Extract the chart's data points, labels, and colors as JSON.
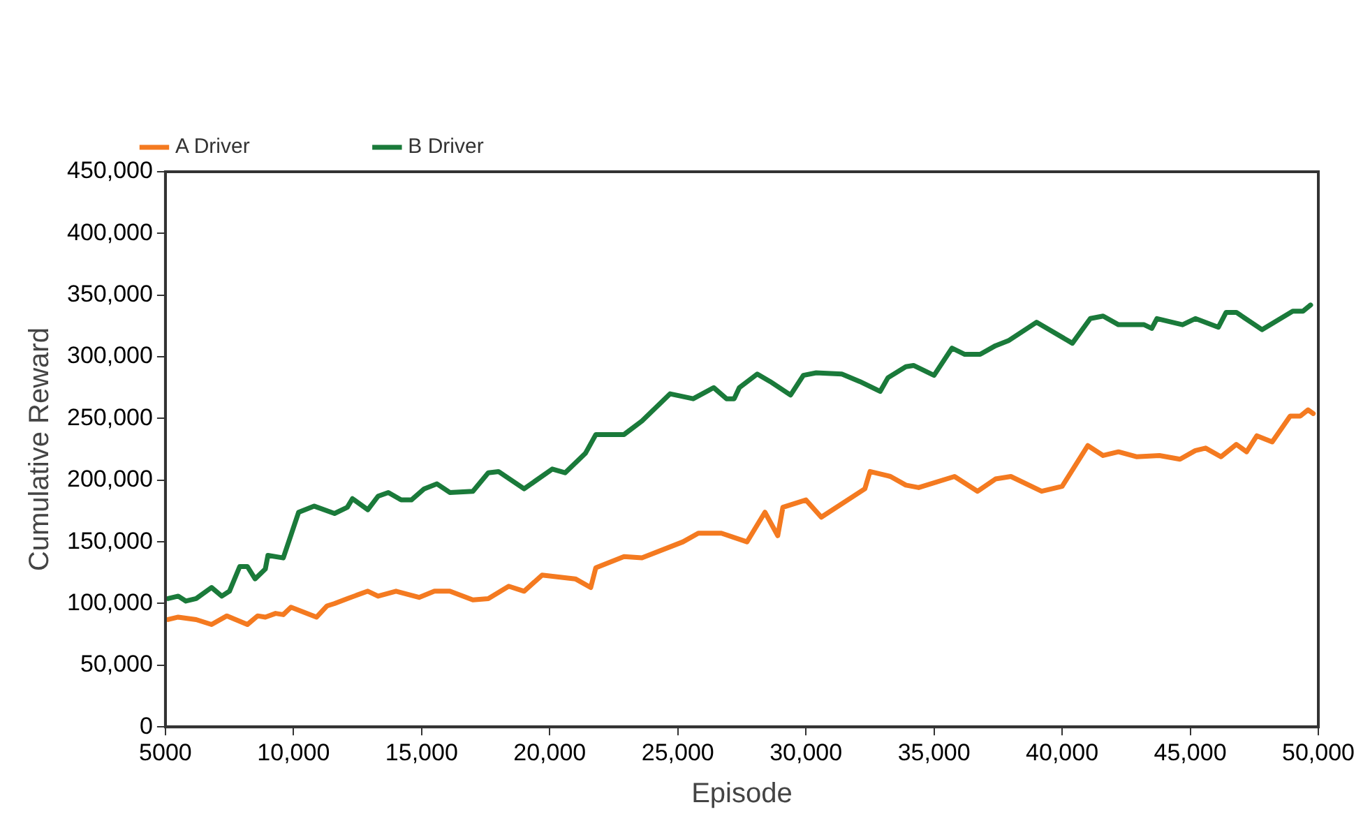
{
  "chart_data": {
    "type": "line",
    "xlabel": "Episode",
    "ylabel": "Cumulative Reward",
    "xlim": [
      5000,
      50000
    ],
    "xticks": [
      5000,
      {
        "value": 10000,
        "label": "10,000"
      },
      {
        "value": 15000,
        "label": "15,000"
      },
      {
        "value": 20000,
        "label": "20,000"
      },
      {
        "value": 25000,
        "label": "25,000"
      },
      {
        "value": 30000,
        "label": "30,000"
      },
      {
        "value": 35000,
        "label": "35,000"
      },
      {
        "value": 40000,
        "label": "40,000"
      },
      {
        "value": 45000,
        "label": "45,000"
      },
      {
        "value": 50000,
        "label": "50,000"
      }
    ],
    "ylim": [
      0,
      450000
    ],
    "yticks": [
      0,
      {
        "value": 50000,
        "label": "50,000"
      },
      {
        "value": 100000,
        "label": "100,000"
      },
      {
        "value": 150000,
        "label": "150,000"
      },
      {
        "value": 200000,
        "label": "200,000"
      },
      {
        "value": 250000,
        "label": "250,000"
      },
      {
        "value": 300000,
        "label": "300,000"
      },
      {
        "value": 350000,
        "label": "350,000"
      },
      {
        "value": 400000,
        "label": "400,000"
      },
      {
        "value": 450000,
        "label": "450,000"
      }
    ],
    "grid": false,
    "legend": "top",
    "marker": "none",
    "line_style": "solid",
    "series": [
      {
        "name": "A Driver",
        "color": "#f47a20",
        "x": [
          5100,
          5500,
          6200,
          6800,
          7400,
          8200,
          8600,
          8900,
          9300,
          9600,
          9900,
          10900,
          11300,
          11600,
          12100,
          12900,
          13300,
          14000,
          14900,
          15500,
          16100,
          17000,
          17600,
          18400,
          19000,
          19700,
          21000,
          21600,
          21800,
          22900,
          23600,
          25200,
          25800,
          26700,
          27700,
          28400,
          28900,
          29100,
          30000,
          30600,
          32300,
          32500,
          33300,
          33900,
          34400,
          35800,
          36700,
          37400,
          38000,
          39200,
          40000,
          41000,
          41600,
          42200,
          42900,
          43800,
          44600,
          45200,
          45600,
          46200,
          46800,
          47200,
          47600,
          48200,
          48900,
          49300,
          49600,
          49800
        ],
        "values": [
          87000,
          89000,
          87000,
          83000,
          90000,
          83000,
          90000,
          89000,
          92000,
          91000,
          97000,
          89000,
          98000,
          100000,
          104000,
          110000,
          106000,
          110000,
          105000,
          110000,
          110000,
          103000,
          104000,
          114000,
          110000,
          123000,
          120000,
          113000,
          129000,
          138000,
          137000,
          150000,
          157000,
          157000,
          150000,
          174000,
          155000,
          178000,
          184000,
          170000,
          193000,
          207000,
          203000,
          196000,
          194000,
          203000,
          191000,
          201000,
          203000,
          191000,
          195000,
          228000,
          220000,
          223000,
          219000,
          220000,
          217000,
          224000,
          226000,
          219000,
          229000,
          223000,
          236000,
          231000,
          252000,
          252000,
          257000,
          254000
        ]
      },
      {
        "name": "B Driver",
        "color": "#1a7a3a",
        "x": [
          5100,
          5500,
          5800,
          6200,
          6800,
          7200,
          7500,
          7900,
          8200,
          8500,
          8900,
          9000,
          9600,
          10200,
          10800,
          11600,
          12100,
          12300,
          12900,
          13300,
          13700,
          14200,
          14600,
          15100,
          15600,
          16100,
          17000,
          17600,
          18000,
          19000,
          20100,
          20600,
          21400,
          21800,
          22900,
          23600,
          24700,
          25600,
          26400,
          26900,
          27200,
          27400,
          28100,
          28600,
          29400,
          29900,
          30400,
          31400,
          32100,
          32900,
          33200,
          33900,
          34200,
          35000,
          35700,
          36200,
          36800,
          37400,
          37900,
          39000,
          40400,
          41100,
          41600,
          42200,
          43200,
          43500,
          43700,
          44700,
          45200,
          46100,
          46400,
          46800,
          47800,
          49000,
          49400,
          49700
        ],
        "values": [
          104000,
          106000,
          102000,
          104000,
          113000,
          106000,
          110000,
          130000,
          130000,
          120000,
          128000,
          139000,
          137000,
          174000,
          179000,
          173000,
          178000,
          185000,
          176000,
          187000,
          190000,
          184000,
          184000,
          193000,
          197000,
          190000,
          191000,
          206000,
          207000,
          193000,
          209000,
          206000,
          222000,
          237000,
          237000,
          248000,
          270000,
          266000,
          275000,
          266000,
          266000,
          275000,
          286000,
          280000,
          269000,
          285000,
          287000,
          286000,
          280000,
          272000,
          283000,
          292000,
          293000,
          285000,
          307000,
          302000,
          302000,
          309000,
          313000,
          328000,
          311000,
          331000,
          333000,
          326000,
          326000,
          323000,
          331000,
          326000,
          331000,
          324000,
          336000,
          336000,
          322000,
          337000,
          337000,
          342000
        ]
      }
    ]
  }
}
